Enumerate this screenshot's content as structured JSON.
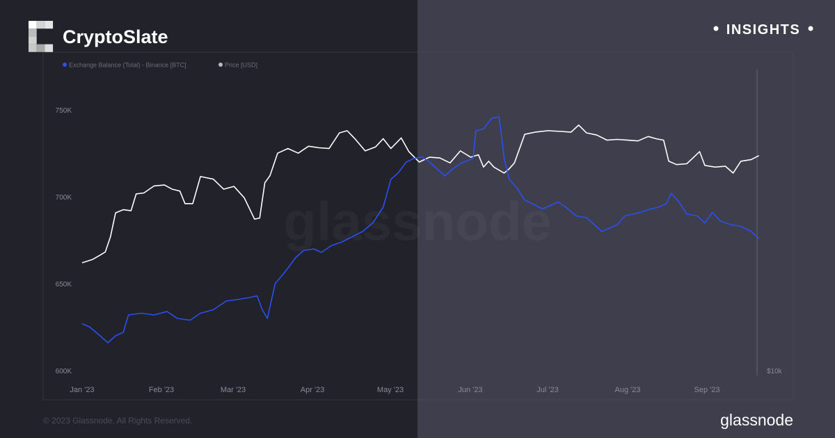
{
  "brand": {
    "name": "CryptoSlate",
    "badge": "INSIGHTS",
    "copyright": "© 2023 Glassnode. All Rights Reserved.",
    "source_logo": "glassnode",
    "watermark": "glassnode"
  },
  "colors": {
    "bg_left": "#22222a",
    "bg_right": "#3f3e4c",
    "balance": "#2b50f0",
    "price": "#ffffff",
    "axis_text": "#8a8a98"
  },
  "chart_data": {
    "type": "line",
    "legend_position": "top-left",
    "grid": false,
    "x_range": [
      "2023-01-01",
      "2023-09-23"
    ],
    "x_ticks": [
      "Jan '23",
      "Feb '23",
      "Mar '23",
      "Apr '23",
      "May '23",
      "Jun '23",
      "Jul '23",
      "Aug '23",
      "Sep '23"
    ],
    "y_left": {
      "ticks": [
        "600K",
        "650K",
        "700K",
        "750K"
      ],
      "range": [
        600000,
        765000
      ]
    },
    "y_right": {
      "ticks": [
        "$10k"
      ],
      "scale": "log"
    },
    "series": [
      {
        "name": "Exchange Balance (Total) - Binance [BTC]",
        "axis": "left",
        "points": [
          [
            "2023-01-01",
            627000
          ],
          [
            "2023-01-04",
            625000
          ],
          [
            "2023-01-08",
            620000
          ],
          [
            "2023-01-11",
            616000
          ],
          [
            "2023-01-14",
            620000
          ],
          [
            "2023-01-17",
            622000
          ],
          [
            "2023-01-19",
            632000
          ],
          [
            "2023-01-24",
            633000
          ],
          [
            "2023-01-29",
            632000
          ],
          [
            "2023-02-03",
            634000
          ],
          [
            "2023-02-07",
            630000
          ],
          [
            "2023-02-12",
            629000
          ],
          [
            "2023-02-16",
            633000
          ],
          [
            "2023-02-21",
            635000
          ],
          [
            "2023-02-26",
            640000
          ],
          [
            "2023-03-03",
            641000
          ],
          [
            "2023-03-07",
            642000
          ],
          [
            "2023-03-10",
            643000
          ],
          [
            "2023-03-12",
            635000
          ],
          [
            "2023-03-14",
            630000
          ],
          [
            "2023-03-17",
            650000
          ],
          [
            "2023-03-21",
            657000
          ],
          [
            "2023-03-25",
            665000
          ],
          [
            "2023-03-28",
            669000
          ],
          [
            "2023-04-01",
            670000
          ],
          [
            "2023-04-04",
            668000
          ],
          [
            "2023-04-08",
            672000
          ],
          [
            "2023-04-12",
            674000
          ],
          [
            "2023-04-16",
            677000
          ],
          [
            "2023-04-20",
            680000
          ],
          [
            "2023-04-24",
            685000
          ],
          [
            "2023-04-28",
            694000
          ],
          [
            "2023-05-01",
            710000
          ],
          [
            "2023-05-04",
            714000
          ],
          [
            "2023-05-07",
            720000
          ],
          [
            "2023-05-10",
            722000
          ],
          [
            "2023-05-13",
            723000
          ],
          [
            "2023-05-16",
            720000
          ],
          [
            "2023-05-19",
            716000
          ],
          [
            "2023-05-22",
            712000
          ],
          [
            "2023-05-25",
            716000
          ],
          [
            "2023-05-28",
            719000
          ],
          [
            "2023-05-31",
            721000
          ],
          [
            "2023-06-02",
            722000
          ],
          [
            "2023-06-03",
            738000
          ],
          [
            "2023-06-06",
            739000
          ],
          [
            "2023-06-09",
            745000
          ],
          [
            "2023-06-12",
            746000
          ],
          [
            "2023-06-13",
            735000
          ],
          [
            "2023-06-14",
            722000
          ],
          [
            "2023-06-16",
            710000
          ],
          [
            "2023-06-19",
            705000
          ],
          [
            "2023-06-22",
            698000
          ],
          [
            "2023-06-25",
            696000
          ],
          [
            "2023-06-29",
            693000
          ],
          [
            "2023-07-02",
            695000
          ],
          [
            "2023-07-05",
            697000
          ],
          [
            "2023-07-08",
            694000
          ],
          [
            "2023-07-12",
            689000
          ],
          [
            "2023-07-16",
            688000
          ],
          [
            "2023-07-19",
            684000
          ],
          [
            "2023-07-22",
            680000
          ],
          [
            "2023-07-25",
            682000
          ],
          [
            "2023-07-28",
            684000
          ],
          [
            "2023-07-31",
            689000
          ],
          [
            "2023-08-03",
            690000
          ],
          [
            "2023-08-06",
            691000
          ],
          [
            "2023-08-10",
            693000
          ],
          [
            "2023-08-13",
            694000
          ],
          [
            "2023-08-16",
            696000
          ],
          [
            "2023-08-18",
            702000
          ],
          [
            "2023-08-21",
            697000
          ],
          [
            "2023-08-24",
            690000
          ],
          [
            "2023-08-28",
            689000
          ],
          [
            "2023-08-31",
            685000
          ],
          [
            "2023-09-03",
            691000
          ],
          [
            "2023-09-06",
            686000
          ],
          [
            "2023-09-10",
            684000
          ],
          [
            "2023-09-14",
            683000
          ],
          [
            "2023-09-18",
            680000
          ],
          [
            "2023-09-21",
            676000
          ]
        ]
      },
      {
        "name": "Price [USD]",
        "axis": "right",
        "points": [
          [
            "2023-01-01",
            16600
          ],
          [
            "2023-01-05",
            16850
          ],
          [
            "2023-01-08",
            17200
          ],
          [
            "2023-01-10",
            17450
          ],
          [
            "2023-01-12",
            18700
          ],
          [
            "2023-01-14",
            20900
          ],
          [
            "2023-01-17",
            21200
          ],
          [
            "2023-01-20",
            21100
          ],
          [
            "2023-01-22",
            22800
          ],
          [
            "2023-01-25",
            22900
          ],
          [
            "2023-01-29",
            23650
          ],
          [
            "2023-02-02",
            23750
          ],
          [
            "2023-02-05",
            23300
          ],
          [
            "2023-02-08",
            23100
          ],
          [
            "2023-02-10",
            21800
          ],
          [
            "2023-02-13",
            21800
          ],
          [
            "2023-02-16",
            24700
          ],
          [
            "2023-02-21",
            24400
          ],
          [
            "2023-02-25",
            23300
          ],
          [
            "2023-03-01",
            23600
          ],
          [
            "2023-03-05",
            22400
          ],
          [
            "2023-03-09",
            20300
          ],
          [
            "2023-03-11",
            20400
          ],
          [
            "2023-03-13",
            24000
          ],
          [
            "2023-03-15",
            24800
          ],
          [
            "2023-03-18",
            27500
          ],
          [
            "2023-03-22",
            28100
          ],
          [
            "2023-03-26",
            27500
          ],
          [
            "2023-03-30",
            28400
          ],
          [
            "2023-04-03",
            28200
          ],
          [
            "2023-04-07",
            28100
          ],
          [
            "2023-04-11",
            30200
          ],
          [
            "2023-04-14",
            30500
          ],
          [
            "2023-04-17",
            29400
          ],
          [
            "2023-04-21",
            27800
          ],
          [
            "2023-04-25",
            28300
          ],
          [
            "2023-04-28",
            29400
          ],
          [
            "2023-05-01",
            28100
          ],
          [
            "2023-05-05",
            29500
          ],
          [
            "2023-05-08",
            27700
          ],
          [
            "2023-05-12",
            26400
          ],
          [
            "2023-05-16",
            27000
          ],
          [
            "2023-05-20",
            26900
          ],
          [
            "2023-05-24",
            26300
          ],
          [
            "2023-05-28",
            27800
          ],
          [
            "2023-06-01",
            27000
          ],
          [
            "2023-06-04",
            27300
          ],
          [
            "2023-06-06",
            25800
          ],
          [
            "2023-06-08",
            26500
          ],
          [
            "2023-06-10",
            25800
          ],
          [
            "2023-06-14",
            25100
          ],
          [
            "2023-06-16",
            25600
          ],
          [
            "2023-06-18",
            26300
          ],
          [
            "2023-06-22",
            30000
          ],
          [
            "2023-06-26",
            30300
          ],
          [
            "2023-07-01",
            30500
          ],
          [
            "2023-07-06",
            30400
          ],
          [
            "2023-07-10",
            30300
          ],
          [
            "2023-07-13",
            31300
          ],
          [
            "2023-07-16",
            30200
          ],
          [
            "2023-07-20",
            29900
          ],
          [
            "2023-07-24",
            29200
          ],
          [
            "2023-07-28",
            29300
          ],
          [
            "2023-08-01",
            29200
          ],
          [
            "2023-08-05",
            29100
          ],
          [
            "2023-08-09",
            29700
          ],
          [
            "2023-08-12",
            29400
          ],
          [
            "2023-08-15",
            29200
          ],
          [
            "2023-08-17",
            26500
          ],
          [
            "2023-08-20",
            26100
          ],
          [
            "2023-08-24",
            26200
          ],
          [
            "2023-08-29",
            27700
          ],
          [
            "2023-08-31",
            26000
          ],
          [
            "2023-09-04",
            25800
          ],
          [
            "2023-09-08",
            25900
          ],
          [
            "2023-09-11",
            25100
          ],
          [
            "2023-09-14",
            26500
          ],
          [
            "2023-09-18",
            26700
          ],
          [
            "2023-09-21",
            27200
          ]
        ]
      }
    ]
  }
}
